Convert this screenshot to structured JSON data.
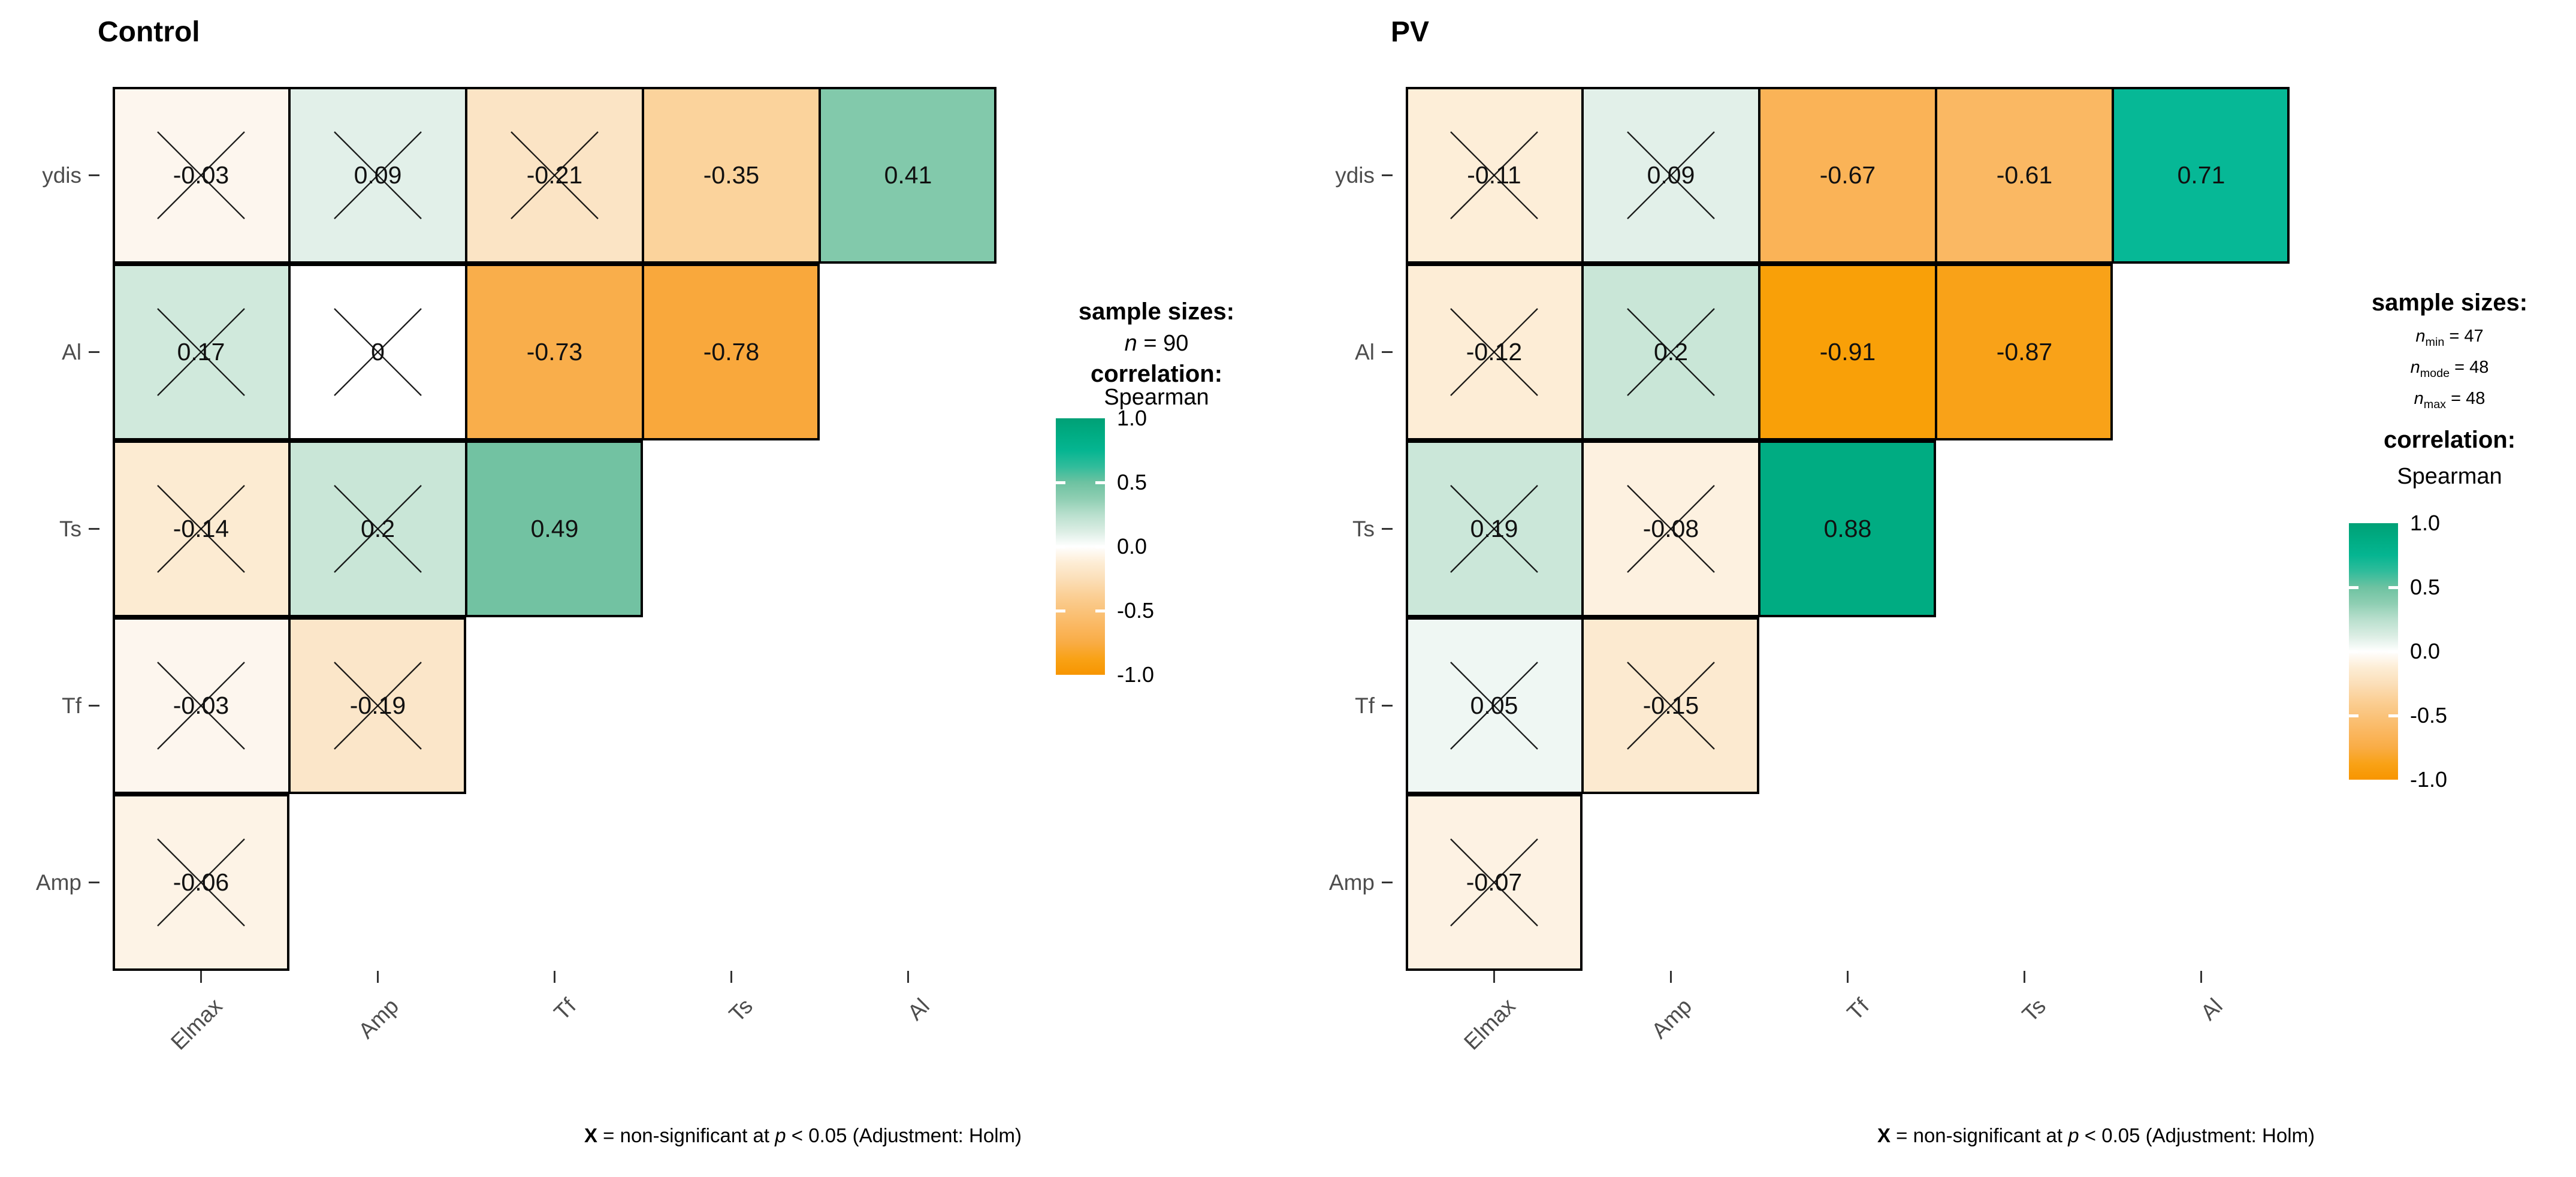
{
  "color_scale": {
    "stops": [
      {
        "v": -1.0,
        "c": "#F79500"
      },
      {
        "v": -0.91,
        "c": "#F9A008"
      },
      {
        "v": -0.78,
        "c": "#F9A83C"
      },
      {
        "v": -0.73,
        "c": "#F9AE4B"
      },
      {
        "v": -0.61,
        "c": "#FAB863"
      },
      {
        "v": -0.35,
        "c": "#FBD39C"
      },
      {
        "v": -0.21,
        "c": "#FBE4C5"
      },
      {
        "v": -0.11,
        "c": "#FDEED8"
      },
      {
        "v": -0.03,
        "c": "#FDF6EE"
      },
      {
        "v": 0.0,
        "c": "#FFFFFF"
      },
      {
        "v": 0.09,
        "c": "#E2F0E9"
      },
      {
        "v": 0.2,
        "c": "#C9E6D7"
      },
      {
        "v": 0.41,
        "c": "#82C9AB"
      },
      {
        "v": 0.49,
        "c": "#72C2A2"
      },
      {
        "v": 0.71,
        "c": "#06B896"
      },
      {
        "v": 0.88,
        "c": "#00AC82"
      },
      {
        "v": 1.0,
        "c": "#00A076"
      }
    ]
  },
  "chart_data": [
    {
      "type": "heatmap",
      "title": "Control",
      "x_categories": [
        "Elmax",
        "Amp",
        "Tf",
        "Ts",
        "Al"
      ],
      "y_categories": [
        "ydis",
        "Al",
        "Ts",
        "Tf",
        "Amp"
      ],
      "rows": [
        {
          "y": "ydis",
          "cells": [
            {
              "x": "Elmax",
              "value": -0.03,
              "display": "-0.03",
              "crossed": true
            },
            {
              "x": "Amp",
              "value": 0.09,
              "display": "0.09",
              "crossed": true
            },
            {
              "x": "Tf",
              "value": -0.21,
              "display": "-0.21",
              "crossed": true
            },
            {
              "x": "Ts",
              "value": -0.35,
              "display": "-0.35",
              "crossed": false
            },
            {
              "x": "Al",
              "value": 0.41,
              "display": "0.41",
              "crossed": false
            }
          ]
        },
        {
          "y": "Al",
          "cells": [
            {
              "x": "Elmax",
              "value": 0.17,
              "display": "0.17",
              "crossed": true
            },
            {
              "x": "Amp",
              "value": 0.0,
              "display": "0",
              "crossed": true
            },
            {
              "x": "Tf",
              "value": -0.73,
              "display": "-0.73",
              "crossed": false
            },
            {
              "x": "Ts",
              "value": -0.78,
              "display": "-0.78",
              "crossed": false
            }
          ]
        },
        {
          "y": "Ts",
          "cells": [
            {
              "x": "Elmax",
              "value": -0.14,
              "display": "-0.14",
              "crossed": true
            },
            {
              "x": "Amp",
              "value": 0.2,
              "display": "0.2",
              "crossed": true
            },
            {
              "x": "Tf",
              "value": 0.49,
              "display": "0.49",
              "crossed": false
            }
          ]
        },
        {
          "y": "Tf",
          "cells": [
            {
              "x": "Elmax",
              "value": -0.03,
              "display": "-0.03",
              "crossed": true
            },
            {
              "x": "Amp",
              "value": -0.19,
              "display": "-0.19",
              "crossed": true
            }
          ]
        },
        {
          "y": "Amp",
          "cells": [
            {
              "x": "Elmax",
              "value": -0.06,
              "display": "-0.06",
              "crossed": true
            }
          ]
        }
      ],
      "legend": {
        "sample_sizes_title": "sample sizes:",
        "sample_sizes": [
          {
            "base": "n",
            "sub": "",
            "rest": " = 90"
          }
        ],
        "correlation_title": "correlation:",
        "method": "Spearman",
        "ticks": [
          "1.0",
          "0.5",
          "0.0",
          "-0.5",
          "-1.0"
        ]
      },
      "caption_segments": [
        {
          "text": "X",
          "style": "bold"
        },
        {
          "text": " = non-significant at ",
          "style": "normal"
        },
        {
          "text": "p",
          "style": "italic"
        },
        {
          "text": " < 0.05 (Adjustment: Holm)",
          "style": "normal"
        }
      ]
    },
    {
      "type": "heatmap",
      "title": "PV",
      "x_categories": [
        "Elmax",
        "Amp",
        "Tf",
        "Ts",
        "Al"
      ],
      "y_categories": [
        "ydis",
        "Al",
        "Ts",
        "Tf",
        "Amp"
      ],
      "rows": [
        {
          "y": "ydis",
          "cells": [
            {
              "x": "Elmax",
              "value": -0.11,
              "display": "-0.11",
              "crossed": true
            },
            {
              "x": "Amp",
              "value": 0.09,
              "display": "0.09",
              "crossed": true
            },
            {
              "x": "Tf",
              "value": -0.67,
              "display": "-0.67",
              "crossed": false
            },
            {
              "x": "Ts",
              "value": -0.61,
              "display": "-0.61",
              "crossed": false
            },
            {
              "x": "Al",
              "value": 0.71,
              "display": "0.71",
              "crossed": false
            }
          ]
        },
        {
          "y": "Al",
          "cells": [
            {
              "x": "Elmax",
              "value": -0.12,
              "display": "-0.12",
              "crossed": true
            },
            {
              "x": "Amp",
              "value": 0.2,
              "display": "0.2",
              "crossed": true
            },
            {
              "x": "Tf",
              "value": -0.91,
              "display": "-0.91",
              "crossed": false
            },
            {
              "x": "Ts",
              "value": -0.87,
              "display": "-0.87",
              "crossed": false
            }
          ]
        },
        {
          "y": "Ts",
          "cells": [
            {
              "x": "Elmax",
              "value": 0.19,
              "display": "0.19",
              "crossed": true
            },
            {
              "x": "Amp",
              "value": -0.08,
              "display": "-0.08",
              "crossed": true
            },
            {
              "x": "Tf",
              "value": 0.88,
              "display": "0.88",
              "crossed": false
            }
          ]
        },
        {
          "y": "Tf",
          "cells": [
            {
              "x": "Elmax",
              "value": 0.05,
              "display": "0.05",
              "crossed": true
            },
            {
              "x": "Amp",
              "value": -0.15,
              "display": "-0.15",
              "crossed": true
            }
          ]
        },
        {
          "y": "Amp",
          "cells": [
            {
              "x": "Elmax",
              "value": -0.07,
              "display": "-0.07",
              "crossed": true
            }
          ]
        }
      ],
      "legend": {
        "sample_sizes_title": "sample sizes:",
        "sample_sizes": [
          {
            "base": "n",
            "sub": "min",
            "rest": " = 47"
          },
          {
            "base": "n",
            "sub": "mode",
            "rest": " = 48"
          },
          {
            "base": "n",
            "sub": "max",
            "rest": " = 48"
          }
        ],
        "correlation_title": "correlation:",
        "method": "Spearman",
        "ticks": [
          "1.0",
          "0.5",
          "0.0",
          "-0.5",
          "-1.0"
        ]
      },
      "caption_segments": [
        {
          "text": "X",
          "style": "bold"
        },
        {
          "text": " = non-significant at ",
          "style": "normal"
        },
        {
          "text": "p",
          "style": "italic"
        },
        {
          "text": " < 0.05 (Adjustment: Holm)",
          "style": "normal"
        }
      ]
    }
  ]
}
